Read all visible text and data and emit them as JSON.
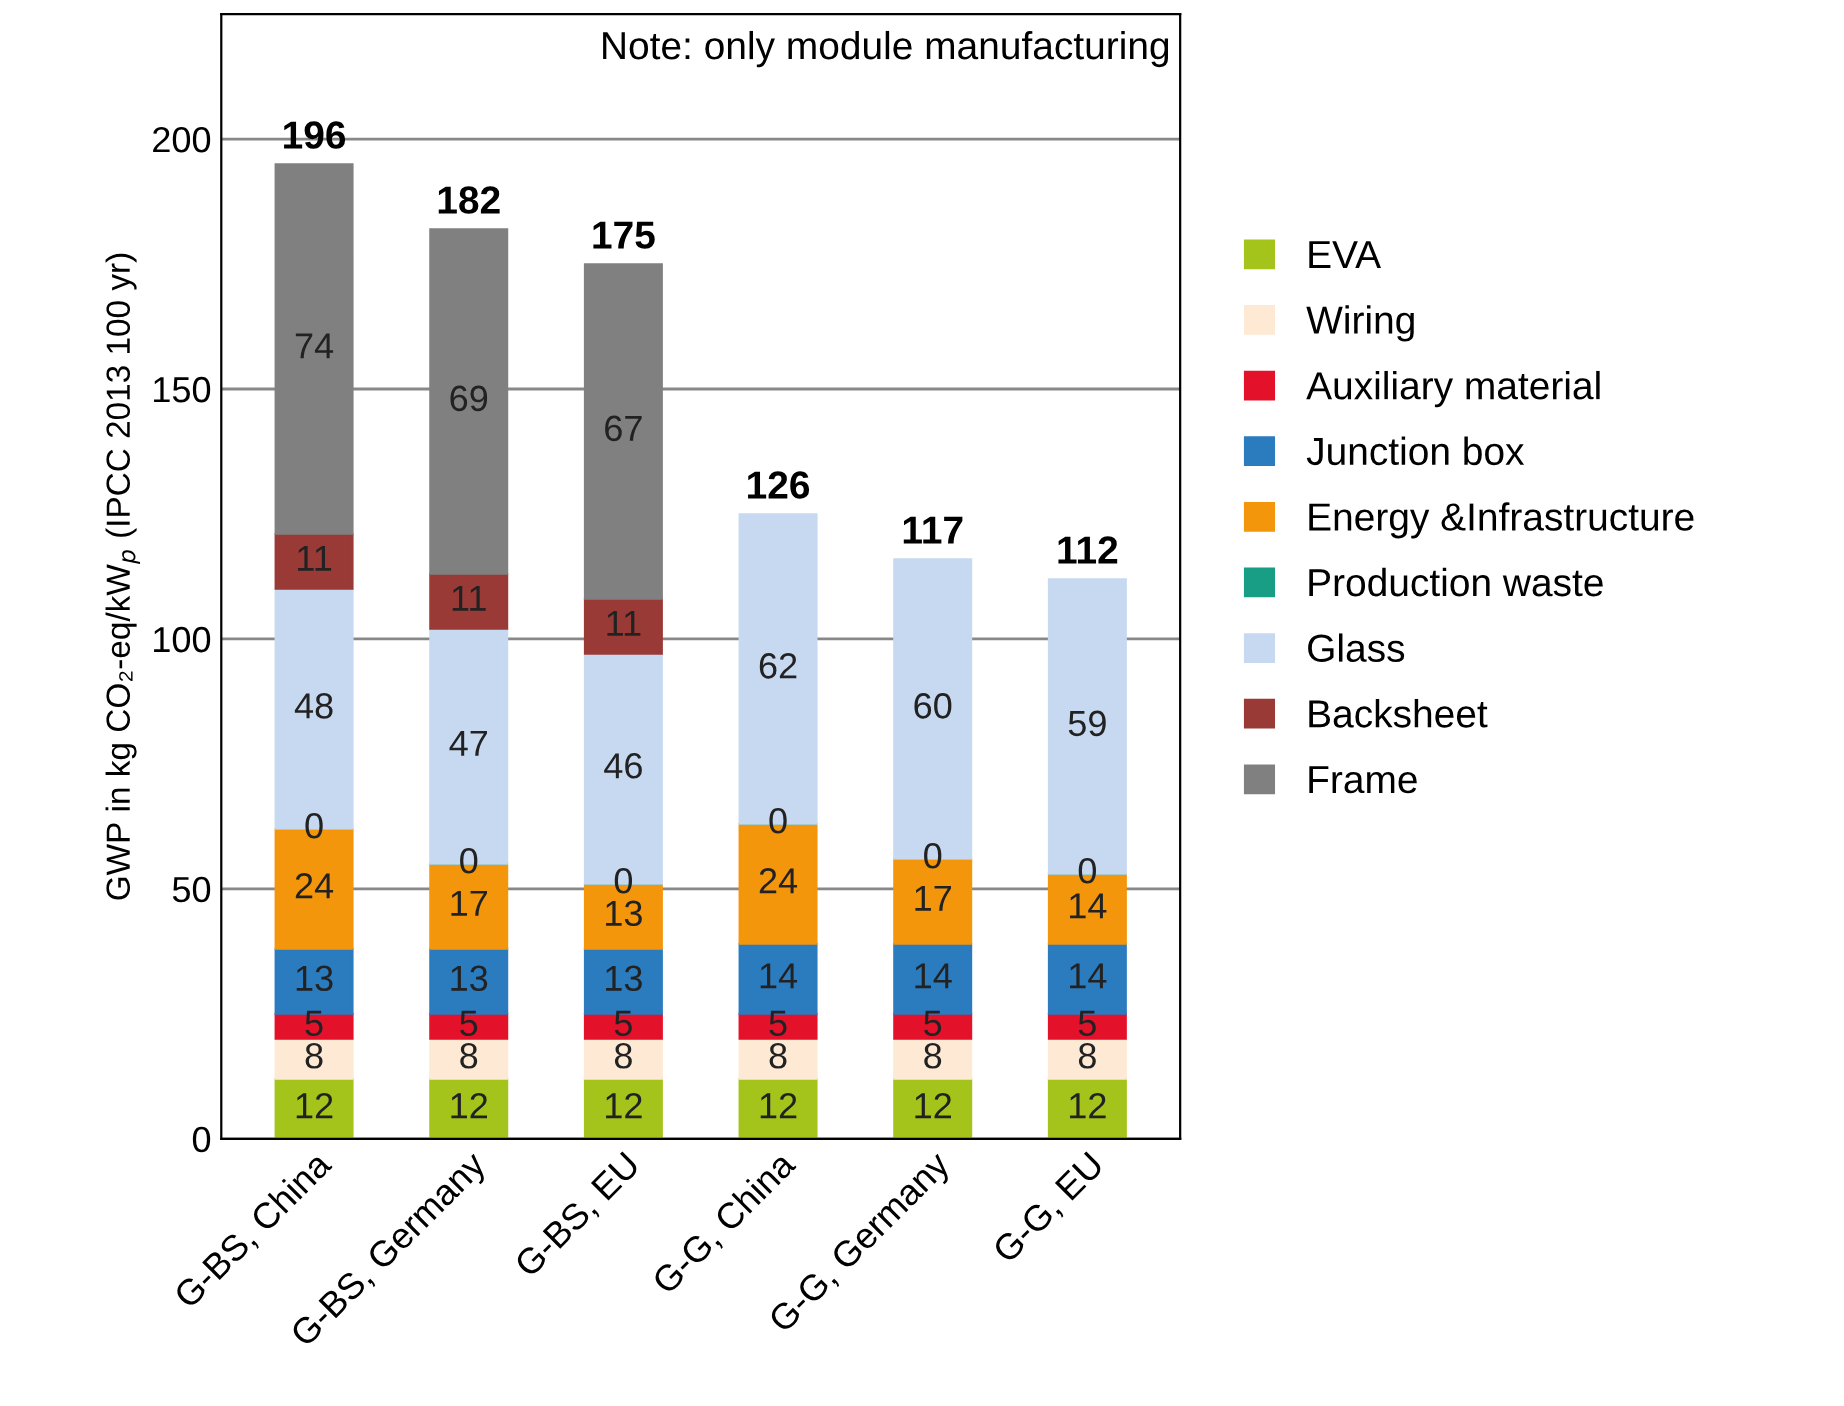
{
  "chart_data": {
    "type": "bar",
    "stacked": true,
    "ylabel": "GWP in kg CO₂-eq/kW$_{p}$ (IPCC 2013 100 yr)",
    "categories": [
      "G-BS, China",
      "G-BS, Germany",
      "G-BS, EU",
      "G-G, China",
      "G-G, Germany",
      "G-G, EU"
    ],
    "series": [
      {
        "name": "EVA",
        "color": "#a4c41c",
        "values": [
          12,
          12,
          12,
          12,
          12,
          12
        ]
      },
      {
        "name": "Wiring",
        "color": "#fde9d4",
        "values": [
          8,
          8,
          8,
          8,
          8,
          8
        ]
      },
      {
        "name": "Auxiliary material",
        "color": "#e3122a",
        "values": [
          5,
          5,
          5,
          5,
          5,
          5
        ]
      },
      {
        "name": "Junction box",
        "color": "#2b7bbf",
        "values": [
          13,
          13,
          13,
          14,
          14,
          14
        ]
      },
      {
        "name": "Energy &Infrastructure",
        "color": "#f3960c",
        "values": [
          24,
          17,
          13,
          24,
          17,
          14
        ]
      },
      {
        "name": "Production waste",
        "color": "#179e84",
        "values": [
          0,
          0,
          0,
          0,
          0,
          0
        ]
      },
      {
        "name": "Glass",
        "color": "#c7d9f0",
        "values": [
          48,
          47,
          46,
          62,
          60,
          59
        ]
      },
      {
        "name": "Backsheet",
        "color": "#9a3a36",
        "values": [
          11,
          11,
          11,
          null,
          null,
          null
        ]
      },
      {
        "name": "Frame",
        "color": "#808080",
        "values": [
          74,
          69,
          67,
          null,
          null,
          null
        ]
      }
    ],
    "totals": [
      "196",
      "182",
      "175",
      "126",
      "117",
      "112"
    ],
    "data_labels": true,
    "ylim": [
      0,
      225
    ],
    "yticks": [
      0,
      50,
      100,
      150,
      200
    ],
    "grid": "y",
    "legend": "right",
    "annotations": [
      "Note: only module manufacturing"
    ]
  }
}
